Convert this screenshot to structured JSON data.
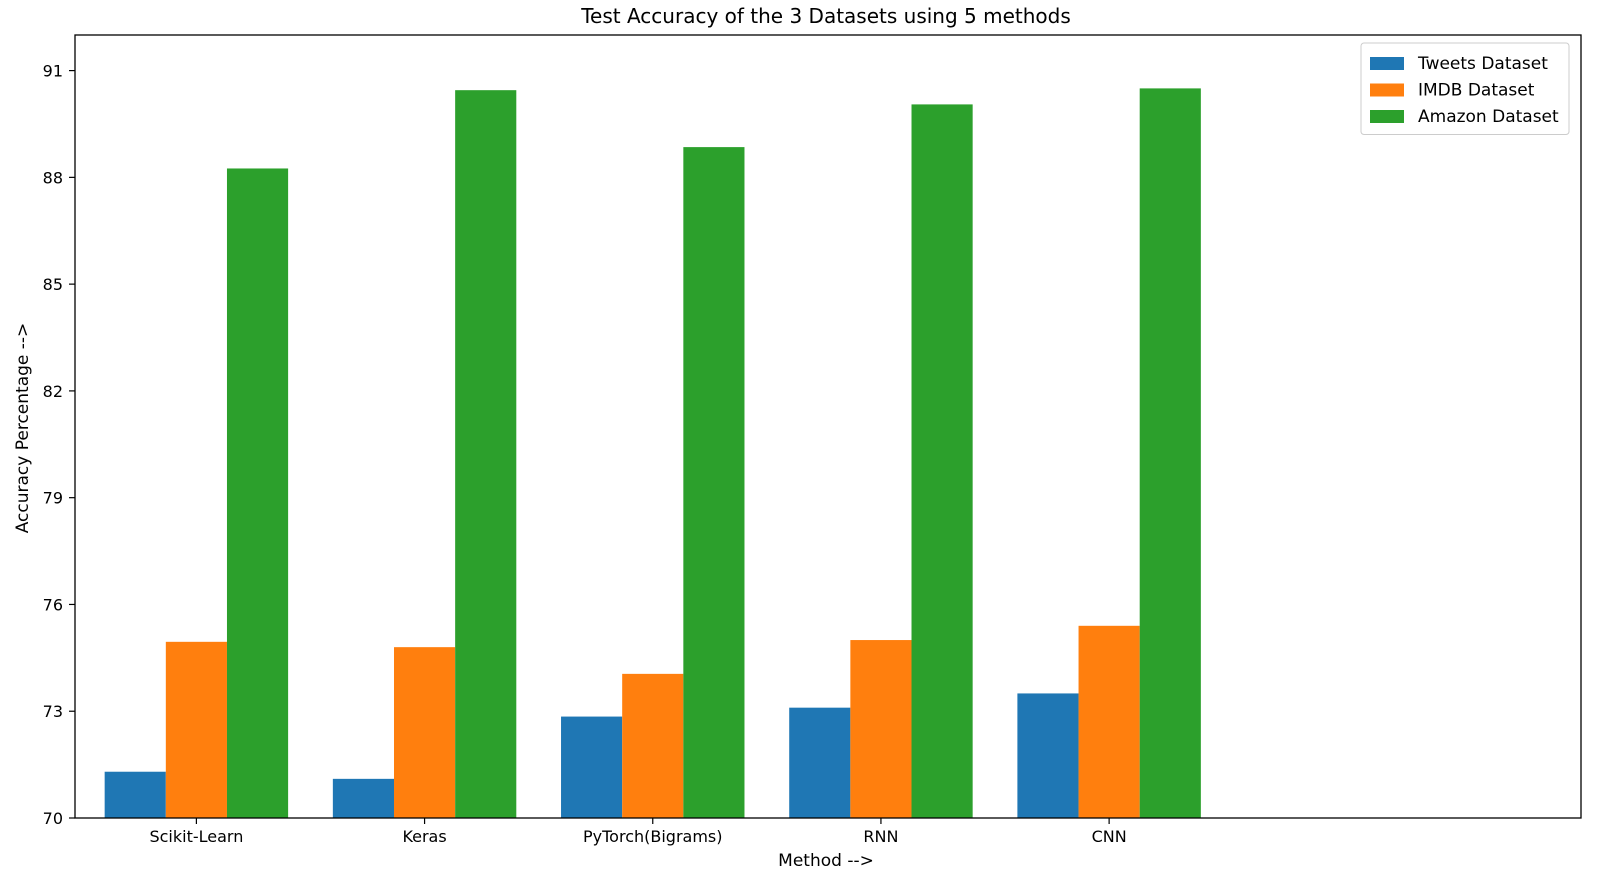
{
  "chart_data": {
    "type": "bar",
    "title": "Test Accuracy of the 3 Datasets using 5 methods",
    "xlabel": "Method  -->",
    "ylabel": "Accuracy Percentage  -->",
    "categories": [
      "Scikit-Learn",
      "Keras",
      "PyTorch(Bigrams)",
      "RNN",
      "CNN"
    ],
    "series": [
      {
        "name": "Tweets Dataset",
        "color": "#1f77b4",
        "values": [
          71.3,
          71.1,
          72.85,
          73.1,
          73.5
        ]
      },
      {
        "name": "IMDB Dataset",
        "color": "#ff7f0e",
        "values": [
          74.95,
          74.8,
          74.05,
          75.0,
          75.4
        ]
      },
      {
        "name": "Amazon Dataset",
        "color": "#2ca02c",
        "values": [
          88.25,
          90.45,
          88.85,
          90.05,
          90.5
        ]
      }
    ],
    "yticks": [
      70,
      73,
      76,
      79,
      82,
      85,
      88,
      91
    ],
    "ylim": [
      70,
      92
    ],
    "x_extent_categories": 6.6,
    "grid": false,
    "legend_position": "top-right"
  }
}
